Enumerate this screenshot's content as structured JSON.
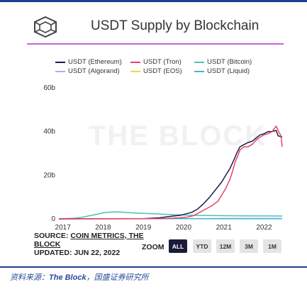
{
  "header": {
    "title": "USDT Supply by Blockchain",
    "logo_icon": "cube-logo-icon"
  },
  "chart_data": {
    "type": "line",
    "title": "USDT Supply by Blockchain",
    "watermark": "THE BLOCK",
    "xlabel": "",
    "ylabel": "",
    "xlim": [
      2016.9,
      2022.45
    ],
    "ylim": [
      0,
      60
    ],
    "x_ticks": [
      "2017",
      "2018",
      "2019",
      "2020",
      "2021",
      "2022"
    ],
    "y_ticks": [
      "0",
      "20b",
      "40b",
      "60b"
    ],
    "grid": false,
    "legend_position": "top",
    "series": [
      {
        "name": "USDT (Ethereum)",
        "color": "#1e1b4b",
        "points": [
          [
            2016.9,
            0
          ],
          [
            2019.0,
            0.1
          ],
          [
            2019.4,
            0.5
          ],
          [
            2019.7,
            1.2
          ],
          [
            2019.9,
            1.6
          ],
          [
            2020.0,
            2
          ],
          [
            2020.2,
            3
          ],
          [
            2020.35,
            4.5
          ],
          [
            2020.5,
            7
          ],
          [
            2020.65,
            10
          ],
          [
            2020.8,
            13.5
          ],
          [
            2020.95,
            17
          ],
          [
            2021.05,
            20
          ],
          [
            2021.15,
            23
          ],
          [
            2021.25,
            27
          ],
          [
            2021.32,
            30
          ],
          [
            2021.4,
            33
          ],
          [
            2021.5,
            34
          ],
          [
            2021.6,
            35
          ],
          [
            2021.7,
            35.5
          ],
          [
            2021.8,
            37
          ],
          [
            2021.9,
            38.5
          ],
          [
            2022.0,
            39
          ],
          [
            2022.1,
            40
          ],
          [
            2022.2,
            40
          ],
          [
            2022.3,
            40.5
          ],
          [
            2022.35,
            38
          ],
          [
            2022.45,
            37.5
          ]
        ]
      },
      {
        "name": "USDT (Tron)",
        "color": "#e8426c",
        "points": [
          [
            2016.9,
            0
          ],
          [
            2019.3,
            0.1
          ],
          [
            2019.6,
            0.2
          ],
          [
            2019.9,
            0.5
          ],
          [
            2020.1,
            0.8
          ],
          [
            2020.25,
            1.5
          ],
          [
            2020.4,
            3
          ],
          [
            2020.55,
            4.5
          ],
          [
            2020.7,
            6
          ],
          [
            2020.85,
            8
          ],
          [
            2020.95,
            11
          ],
          [
            2021.05,
            14
          ],
          [
            2021.15,
            18
          ],
          [
            2021.22,
            22
          ],
          [
            2021.28,
            26
          ],
          [
            2021.35,
            29
          ],
          [
            2021.4,
            31.5
          ],
          [
            2021.5,
            33
          ],
          [
            2021.6,
            33
          ],
          [
            2021.7,
            34
          ],
          [
            2021.8,
            36
          ],
          [
            2021.9,
            37.5
          ],
          [
            2022.0,
            38.5
          ],
          [
            2022.1,
            39
          ],
          [
            2022.2,
            40
          ],
          [
            2022.3,
            42.5
          ],
          [
            2022.36,
            40
          ],
          [
            2022.42,
            38
          ],
          [
            2022.45,
            33
          ]
        ]
      },
      {
        "name": "USDT (Bitcoin)",
        "color": "#4fc1b0",
        "points": [
          [
            2016.9,
            0
          ],
          [
            2017.3,
            0.3
          ],
          [
            2017.5,
            0.8
          ],
          [
            2017.7,
            1.6
          ],
          [
            2017.9,
            2.3
          ],
          [
            2018.0,
            2.8
          ],
          [
            2018.2,
            3.1
          ],
          [
            2018.4,
            3.2
          ],
          [
            2018.6,
            2.9
          ],
          [
            2018.8,
            2.7
          ],
          [
            2019.0,
            2.5
          ],
          [
            2019.3,
            2.3
          ],
          [
            2019.6,
            2.0
          ],
          [
            2019.9,
            1.8
          ],
          [
            2020.3,
            1.6
          ],
          [
            2020.8,
            1.5
          ],
          [
            2021.5,
            1.4
          ],
          [
            2022.45,
            1.3
          ]
        ]
      },
      {
        "name": "USDT (Algorand)",
        "color": "#b5a8e0",
        "points": [
          [
            2020.4,
            0.1
          ],
          [
            2021.0,
            0.2
          ],
          [
            2022.45,
            0.2
          ]
        ]
      },
      {
        "name": "USDT (EOS)",
        "color": "#f2d54a",
        "points": [
          [
            2019.5,
            0.1
          ],
          [
            2020.5,
            0.1
          ],
          [
            2022.45,
            0.1
          ]
        ]
      },
      {
        "name": "USDT (Liquid)",
        "color": "#3bb8d8",
        "points": [
          [
            2019.3,
            0.05
          ],
          [
            2020.5,
            0.1
          ],
          [
            2022.45,
            0.1
          ]
        ]
      }
    ]
  },
  "source": {
    "prefix": "SOURCE: ",
    "link": "COIN METRICS, THE BLOCK",
    "updated": "UPDATED: JUN 22, 2022"
  },
  "zoom": {
    "label": "ZOOM",
    "buttons": [
      "ALL",
      "YTD",
      "12M",
      "3M",
      "1M"
    ],
    "active": "ALL"
  },
  "footnote": {
    "prefix": "资料来源：",
    "source": "The Block",
    "suffix": "，国盛证券研究所"
  }
}
